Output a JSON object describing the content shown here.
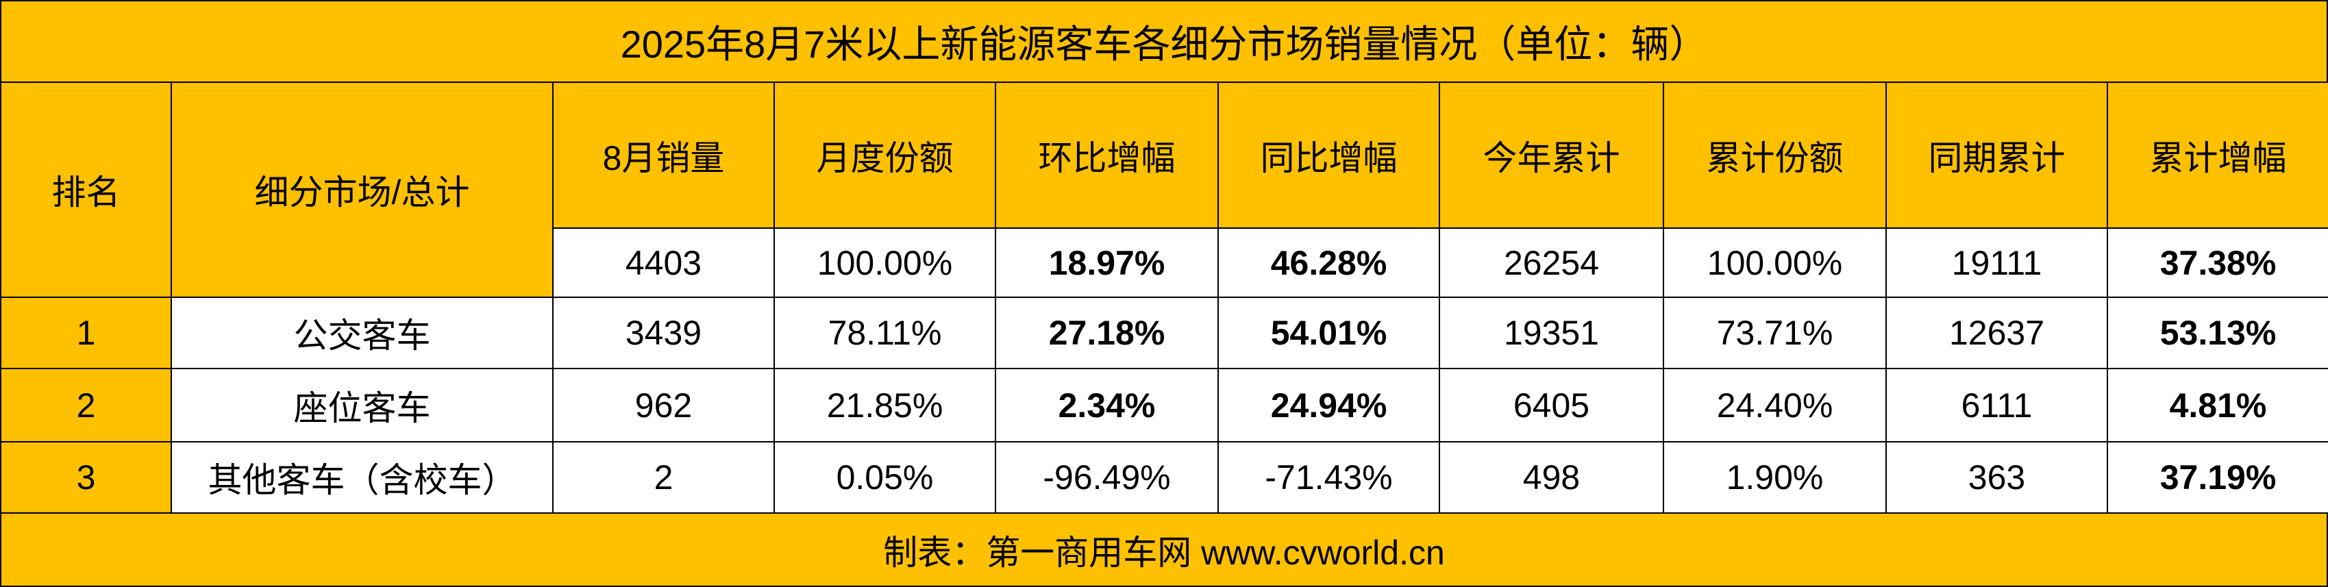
{
  "title": "2025年8月7米以上新能源客车各细分市场销量情况（单位：辆）",
  "table": {
    "header": [
      "排名",
      "细分市场/总计",
      "8月销量",
      "月度份额",
      "环比增幅",
      "同比增幅",
      "今年累计",
      "累计份额",
      "同期累计",
      "累计增幅"
    ],
    "total": [
      "4403",
      "100.00%",
      "18.97%",
      "46.28%",
      "26254",
      "100.00%",
      "19111",
      "37.38%"
    ],
    "rows": [
      [
        "1",
        "公交客车",
        "3439",
        "78.11%",
        "27.18%",
        "54.01%",
        "19351",
        "73.71%",
        "12637",
        "53.13%"
      ],
      [
        "2",
        "座位客车",
        "962",
        "21.85%",
        "2.34%",
        "24.94%",
        "6405",
        "24.40%",
        "6111",
        "4.81%"
      ],
      [
        "3",
        "其他客车（含校车）",
        "2",
        "0.05%",
        "-96.49%",
        "-71.43%",
        "498",
        "1.90%",
        "363",
        "37.19%"
      ]
    ]
  },
  "footer": "制表：第一商用车网 www.cvworld.cn"
}
